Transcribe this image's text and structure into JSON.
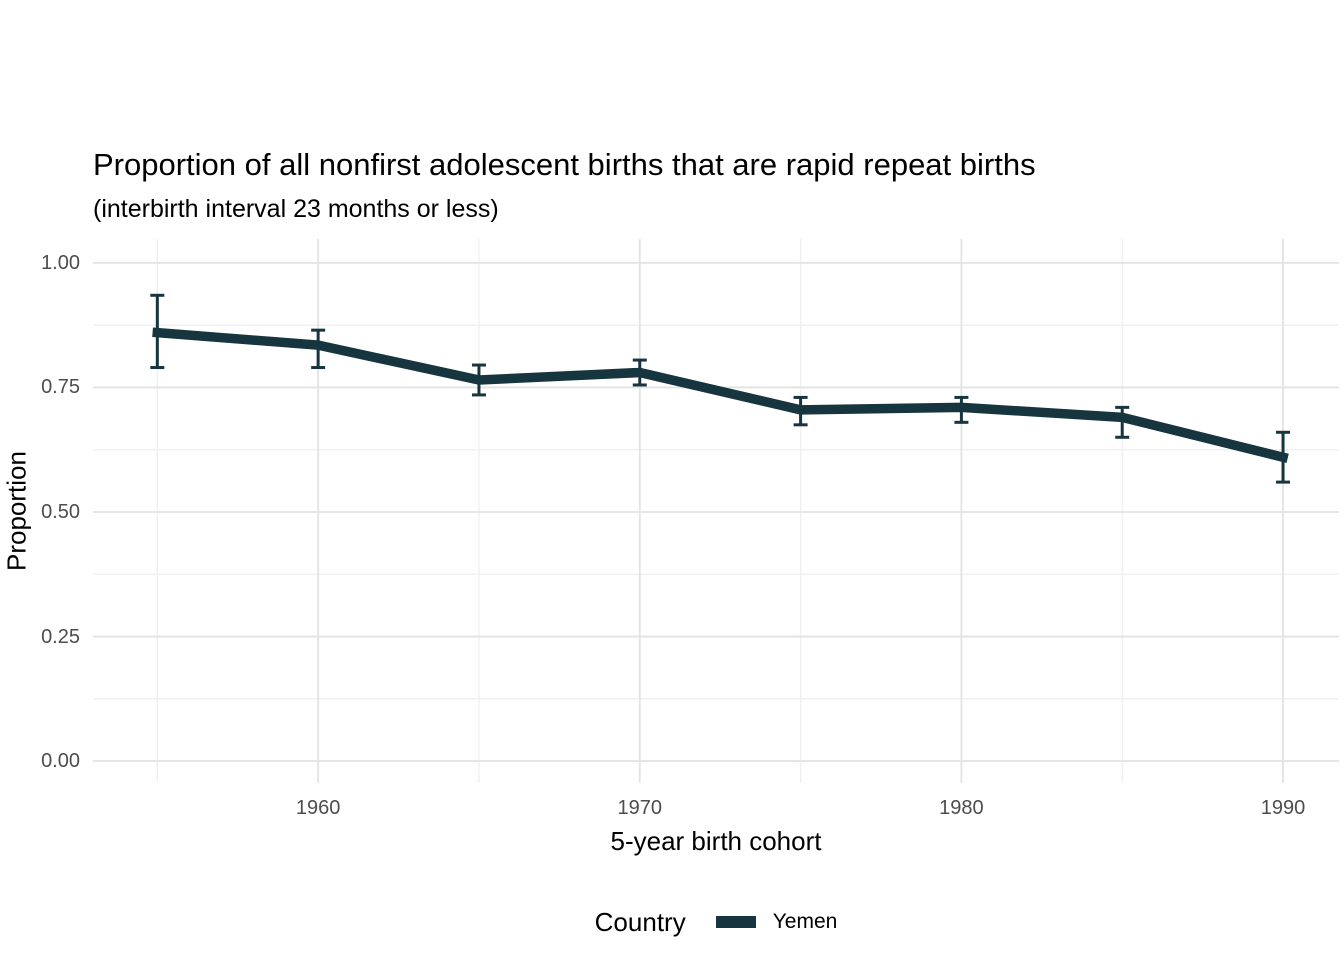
{
  "title": "Proportion of all nonfirst adolescent births that are rapid repeat births",
  "subtitle": "(interbirth interval 23 months or less)",
  "x_axis_title": "5-year birth cohort",
  "y_axis_title": "Proportion",
  "legend": {
    "title": "Country",
    "items": [
      {
        "label": "Yemen",
        "color": "#17353e"
      }
    ]
  },
  "colors": {
    "series_line": "#17353e",
    "grid_major": "#e3e3e3",
    "grid_minor": "#efefef",
    "tick_label": "#4d4d4d",
    "text": "#000000",
    "background": "#ffffff"
  },
  "chart_data": {
    "type": "line",
    "title": "Proportion of all nonfirst adolescent births that are rapid repeat births",
    "subtitle": "(interbirth interval 23 months or less)",
    "xlabel": "5-year birth cohort",
    "ylabel": "Proportion",
    "grid": true,
    "legend_position": "bottom",
    "error_bars": true,
    "x_domain": [
      1953.0,
      1991.74
    ],
    "y_domain": [
      -0.044,
      1.048
    ],
    "x_ticks": {
      "major": [
        1960,
        1970,
        1980,
        1990
      ],
      "minor": [
        1955,
        1965,
        1975,
        1985
      ],
      "labels": [
        "1960",
        "1970",
        "1980",
        "1990"
      ]
    },
    "y_ticks": {
      "major": [
        0,
        0.25,
        0.5,
        0.75,
        1.0
      ],
      "minor": [
        0.125,
        0.375,
        0.625,
        0.875
      ],
      "labels": [
        "0.00",
        "0.25",
        "0.50",
        "0.75",
        "1.00"
      ]
    },
    "series": [
      {
        "name": "Yemen",
        "color": "#17353e",
        "x": [
          1955,
          1960,
          1965,
          1970,
          1975,
          1980,
          1985,
          1990
        ],
        "y": [
          0.86,
          0.835,
          0.765,
          0.78,
          0.705,
          0.71,
          0.69,
          0.61
        ],
        "ci_low": [
          0.79,
          0.79,
          0.735,
          0.755,
          0.675,
          0.68,
          0.65,
          0.56
        ],
        "ci_high": [
          0.935,
          0.865,
          0.795,
          0.805,
          0.73,
          0.73,
          0.71,
          0.66
        ]
      }
    ]
  }
}
